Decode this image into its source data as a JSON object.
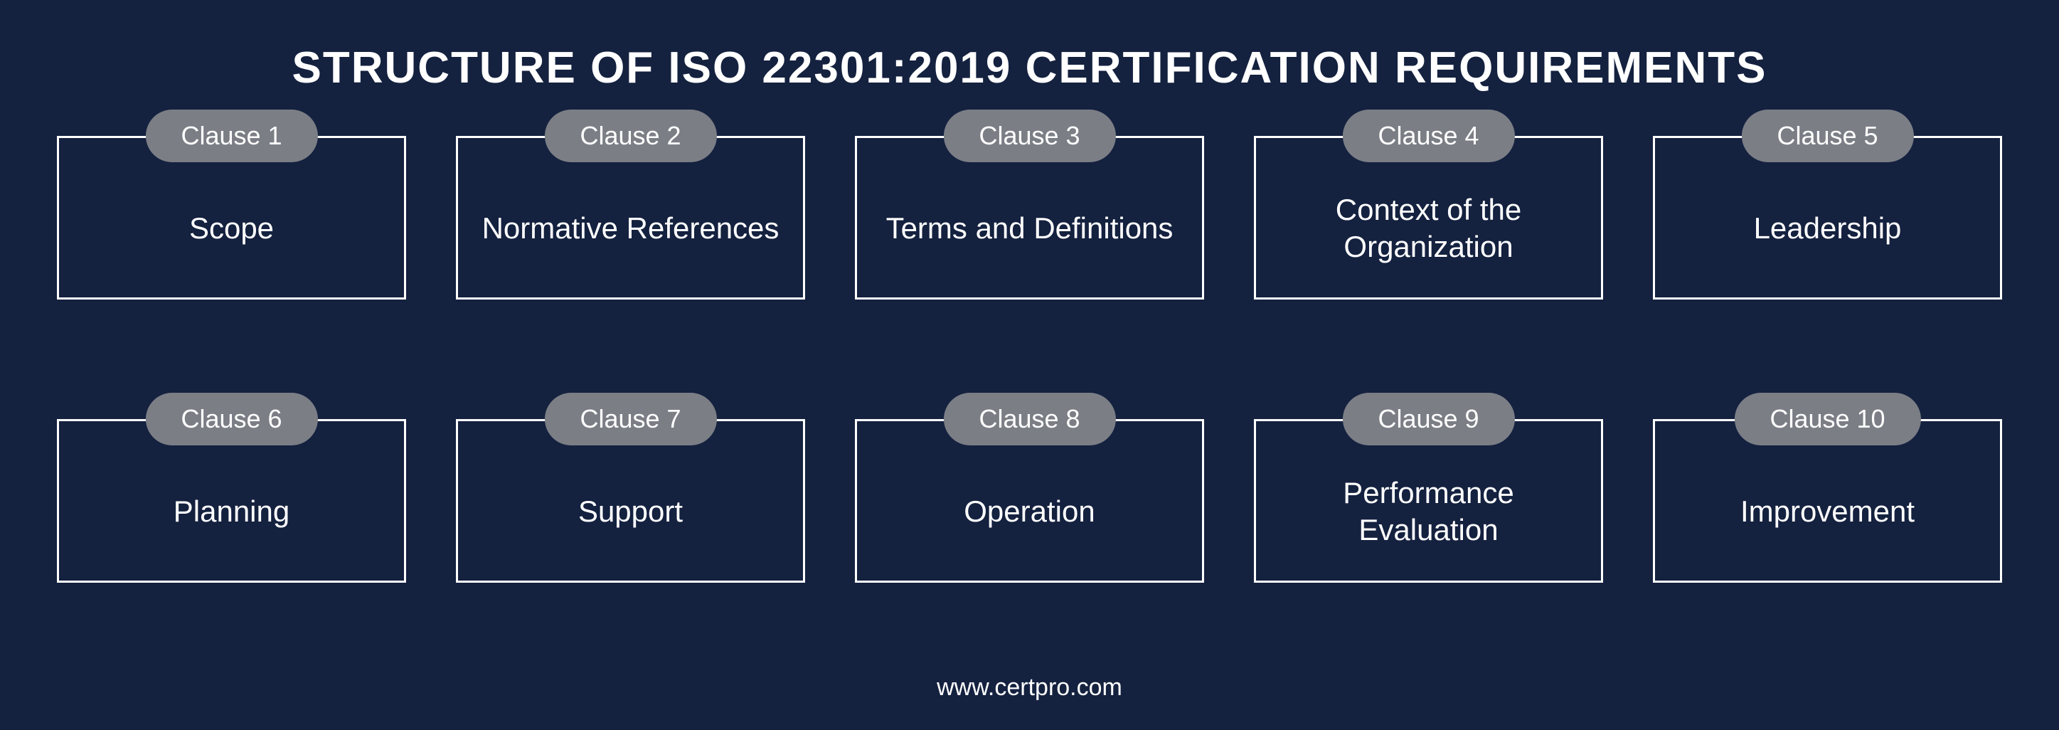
{
  "title": "STRUCTURE OF ISO 22301:2019 CERTIFICATION REQUIREMENTS",
  "footer": "www.certpro.com",
  "colors": {
    "background": "#14213f",
    "text": "#ffffff",
    "pill_bg": "#7b7e85",
    "pill_text": "#ffffff",
    "box_border": "#ffffff"
  },
  "typography": {
    "title_fontsize": 62,
    "pill_fontsize": 36,
    "box_fontsize": 42,
    "footer_fontsize": 34,
    "font_family": "'Segoe UI', Tahoma, Geneva, Verdana, sans-serif"
  },
  "layout": {
    "columns": 5,
    "rows": 2,
    "box_border_width": 3,
    "pill_border_radius": 40
  },
  "cards": [
    {
      "pill": "Clause 1",
      "label": "Scope"
    },
    {
      "pill": "Clause 2",
      "label": "Normative References"
    },
    {
      "pill": "Clause 3",
      "label": "Terms and Definitions"
    },
    {
      "pill": "Clause 4",
      "label": "Context of the Organization"
    },
    {
      "pill": "Clause 5",
      "label": "Leadership"
    },
    {
      "pill": "Clause 6",
      "label": "Planning"
    },
    {
      "pill": "Clause 7",
      "label": "Support"
    },
    {
      "pill": "Clause 8",
      "label": "Operation"
    },
    {
      "pill": "Clause 9",
      "label": "Performance Evaluation"
    },
    {
      "pill": "Clause 10",
      "label": "Improvement"
    }
  ]
}
